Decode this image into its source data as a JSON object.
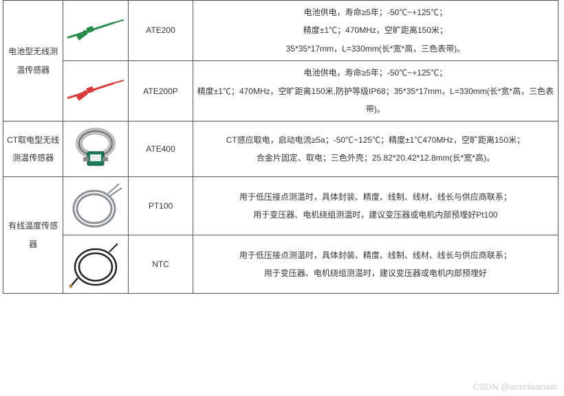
{
  "watermark": "CSDN @acrelwanxin",
  "rows": [
    {
      "category": "电池型无线测温传感器",
      "category_rowspan": 2,
      "model": "ATE200",
      "desc": "电池供电，寿命≥5年；-50℃~+125℃；\n精度±1℃；470MHz，空旷距离150米；\n35*35*17mm，L=330mm(长*宽*高，三色表带)。",
      "image": "strap_green"
    },
    {
      "model": "ATE200P",
      "desc": "电池供电，寿命≥5年；-50℃~+125℃；\n精度±1℃；470MHz，空旷距离150米,防护等级IP68；35*35*17mm，L=330mm(长*宽*高，三色表带)。",
      "image": "strap_red"
    },
    {
      "category": "CT取电型无线测温传感器",
      "category_rowspan": 1,
      "model": "ATE400",
      "desc": "CT感应取电，启动电流≥5a；-50℃~125℃；精度±1℃470MHz，空旷距离150米；\n合金片固定、取电；三色外壳；25.82*20.42*12.8mm(长*宽*高)。",
      "image": "clamp"
    },
    {
      "category": "有线温度传感器",
      "category_rowspan": 2,
      "model": "PT100",
      "desc": "用于低压接点测温时，具体封装、精度、线制、线材、线长与供应商联系；\n用于变压器、电机绕组测温时，建议变压器或电机内部预埋好Pt100",
      "image": "coil_gray"
    },
    {
      "model": "NTC",
      "desc": "用于低压接点测温时，具体封装、精度、线制、线材、线长与供应商联系；\n用于变压器、电机绕组测温时，建议变压器或电机内部预埋好",
      "image": "coil_black"
    }
  ],
  "colors": {
    "strap_green": "#2a8a4a",
    "strap_red": "#d93a3a",
    "clamp_body": "#1a7a5a",
    "clamp_band": "#bcbcbc",
    "coil_gray": "#8a8f94",
    "coil_black": "#222222"
  }
}
